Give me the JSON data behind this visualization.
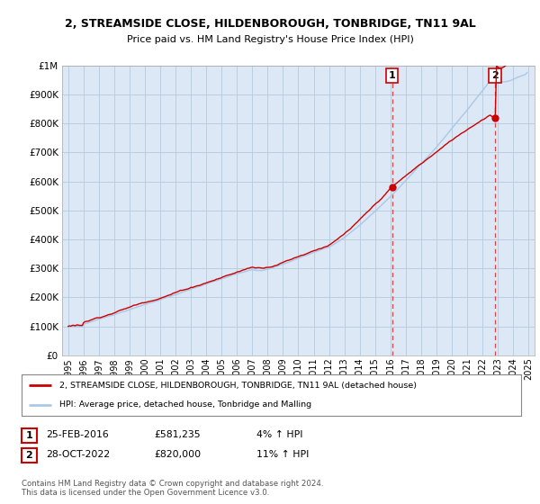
{
  "title1": "2, STREAMSIDE CLOSE, HILDENBOROUGH, TONBRIDGE, TN11 9AL",
  "title2": "Price paid vs. HM Land Registry's House Price Index (HPI)",
  "ytick_values": [
    0,
    100000,
    200000,
    300000,
    400000,
    500000,
    600000,
    700000,
    800000,
    900000,
    1000000
  ],
  "xlim_start": 1994.6,
  "xlim_end": 2025.4,
  "ylim_min": 0,
  "ylim_max": 1000000,
  "hpi_color": "#aac8e8",
  "price_color": "#cc0000",
  "marker1_year": 2016.12,
  "marker1_price": 581235,
  "marker2_year": 2022.82,
  "marker2_price": 820000,
  "sale1_date": "25-FEB-2016",
  "sale1_price": "£581,235",
  "sale1_hpi": "4% ↑ HPI",
  "sale2_date": "28-OCT-2022",
  "sale2_price": "£820,000",
  "sale2_hpi": "11% ↑ HPI",
  "legend_line1": "2, STREAMSIDE CLOSE, HILDENBOROUGH, TONBRIDGE, TN11 9AL (detached house)",
  "legend_line2": "HPI: Average price, detached house, Tonbridge and Malling",
  "footnote1": "Contains HM Land Registry data © Crown copyright and database right 2024.",
  "footnote2": "This data is licensed under the Open Government Licence v3.0.",
  "background_color": "#ffffff",
  "plot_bg_color": "#dce8f5",
  "grid_color": "#b8cfe0",
  "vline_color": "#dd4444",
  "label_box_color": "#cc0000"
}
